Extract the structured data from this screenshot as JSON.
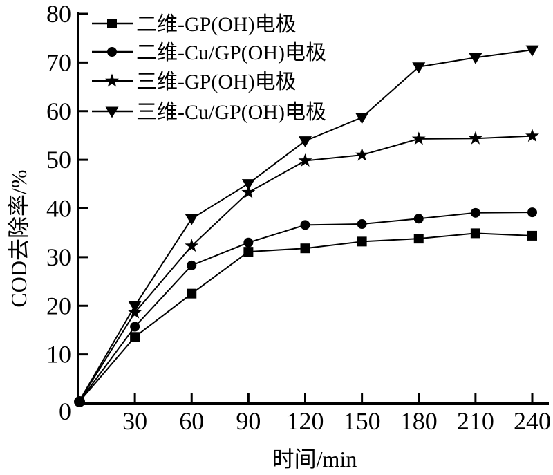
{
  "figure": {
    "background": "#ffffff",
    "ink": "#000000"
  },
  "chart_data": {
    "type": "line",
    "title": "",
    "xlabel": "时间/min",
    "ylabel": "COD去除率/%",
    "x": [
      0,
      30,
      60,
      90,
      120,
      150,
      180,
      210,
      240
    ],
    "x_ticks": [
      30,
      60,
      90,
      120,
      150,
      180,
      210,
      240
    ],
    "y_ticks": [
      0,
      10,
      20,
      30,
      40,
      50,
      60,
      70,
      80
    ],
    "xlim": [
      0,
      248
    ],
    "ylim": [
      0,
      80
    ],
    "grid": false,
    "legend_position": "top-left",
    "series": [
      {
        "name": "二维-GP(OH)电极",
        "marker": "square",
        "color": "#000000",
        "values": [
          0,
          13.6,
          22.5,
          31.1,
          31.8,
          33.2,
          33.8,
          34.9,
          34.4
        ]
      },
      {
        "name": "二维-Cu/GP(OH)电极",
        "marker": "circle",
        "color": "#000000",
        "values": [
          0,
          15.7,
          28.3,
          33.0,
          36.6,
          36.8,
          37.9,
          39.1,
          39.2
        ]
      },
      {
        "name": "三维-GP(OH)电极",
        "marker": "star",
        "color": "#000000",
        "values": [
          0,
          18.6,
          32.3,
          43.3,
          49.8,
          51.0,
          54.3,
          54.4,
          54.9
        ]
      },
      {
        "name": "三维-Cu/GP(OH)电极",
        "marker": "triangle-down",
        "color": "#000000",
        "values": [
          0,
          20.0,
          37.9,
          45.1,
          53.9,
          58.7,
          69.1,
          71.0,
          72.6
        ]
      }
    ]
  }
}
